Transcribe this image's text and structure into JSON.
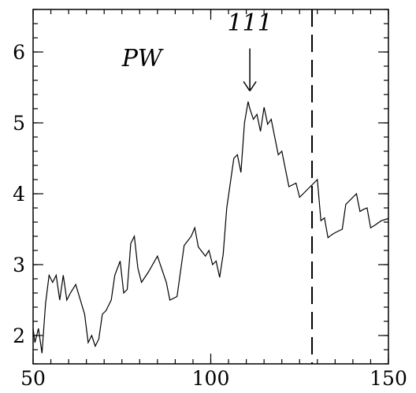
{
  "chart_data": {
    "type": "line",
    "title": "",
    "xlabel": "",
    "ylabel": "",
    "xlim": [
      50,
      150
    ],
    "ylim": [
      1.6,
      6.6
    ],
    "x_ticks": [
      50,
      100,
      150
    ],
    "y_ticks": [
      2,
      3,
      4,
      5,
      6
    ],
    "x_minor_step": 5,
    "y_minor_step": 0.2,
    "grid": false,
    "annotations": {
      "series_label": "PW",
      "peak_label": "111",
      "peak_x": 111,
      "peak_arrow_from_y": 6.05,
      "peak_arrow_to_y": 5.45
    },
    "vertical_line": {
      "x": 128.5,
      "style": "dashed"
    },
    "series": [
      {
        "x": [
          50,
          50.5,
          51.5,
          52.5,
          53.5,
          54.5,
          55.5,
          56.5,
          57.5,
          58.5,
          59.5,
          60.5,
          62,
          64.5,
          65.5,
          66.5,
          67.5,
          68.5,
          69.5,
          70.5,
          72,
          73,
          74.5,
          75.5,
          76.5,
          77.5,
          78.5,
          79.5,
          80.5,
          82.5,
          85,
          87.5,
          88.5,
          90.5,
          92.5,
          94.5,
          95.5,
          96.5,
          98.5,
          99.5,
          100.5,
          101.5,
          102.5,
          103.5,
          104.5,
          105.5,
          106.5,
          107.5,
          108.5,
          109.5,
          110.5,
          111,
          112,
          113,
          114,
          115,
          116,
          117,
          118,
          119,
          120,
          121,
          122,
          124,
          125,
          127,
          129,
          130,
          131,
          132,
          133,
          134,
          135,
          137,
          138,
          141,
          142,
          143,
          144,
          145,
          146,
          148,
          150
        ],
        "y": [
          2.1,
          1.9,
          2.1,
          1.75,
          2.45,
          2.85,
          2.75,
          2.85,
          2.5,
          2.85,
          2.5,
          2.6,
          2.72,
          2.3,
          1.9,
          2.0,
          1.85,
          1.95,
          2.3,
          2.35,
          2.5,
          2.85,
          3.05,
          2.6,
          2.65,
          3.3,
          3.4,
          2.95,
          2.75,
          2.9,
          3.12,
          2.75,
          2.5,
          2.55,
          3.27,
          3.4,
          3.52,
          3.25,
          3.12,
          3.2,
          3.0,
          3.05,
          2.82,
          3.15,
          3.8,
          4.15,
          4.5,
          4.55,
          4.3,
          5.0,
          5.3,
          5.2,
          5.05,
          5.12,
          4.88,
          5.22,
          4.98,
          5.05,
          4.8,
          4.55,
          4.6,
          4.35,
          4.1,
          4.15,
          3.95,
          4.05,
          4.15,
          4.2,
          3.62,
          3.66,
          3.38,
          3.42,
          3.45,
          3.5,
          3.85,
          4.0,
          3.75,
          3.78,
          3.8,
          3.52,
          3.55,
          3.62,
          3.65
        ]
      }
    ]
  }
}
